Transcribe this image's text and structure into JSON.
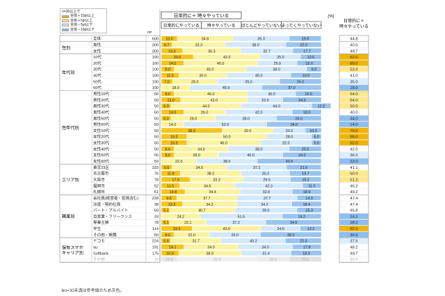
{
  "chart_data": {
    "type": "bar",
    "legend": {
      "title": "n=30以上で",
      "items": [
        {
          "label": "全体＋10pt以上",
          "color": "#f0b400"
        },
        {
          "label": "全体＋5pt以上",
          "color": "#ffe98a"
        },
        {
          "label": "全体－5pt以下",
          "color": "#dceeff"
        },
        {
          "label": "全体－10pt以下",
          "color": "#8cbef0"
        }
      ]
    },
    "group_header": "日常的に＋ 時々やっている",
    "series": [
      {
        "name": "日常的にやっている",
        "color": "#f5c518"
      },
      {
        "name": "時々やっている",
        "color": "#fcf3a0"
      },
      {
        "name": "ほとんどやっていない",
        "color": "#d4e9fb"
      },
      {
        "name": "まったくやっていない",
        "color": "#9ac4ee"
      }
    ],
    "percent_unit": "(%)",
    "right_header": "日常的に＋\n時々やっている",
    "n_header": "n=",
    "groups": [
      {
        "label": "",
        "rows": [
          {
            "label": "全体",
            "n": "600",
            "values": [
              10.0,
              34.8,
              35.3,
              19.8
            ],
            "total": "44.8"
          }
        ]
      },
      {
        "label": "性別",
        "rows": [
          {
            "label": "男性",
            "n": "300",
            "values": [
              6.7,
              33.3,
              38.0,
              22.0
            ],
            "total": "40.0"
          },
          {
            "label": "女性",
            "n": "300",
            "values": [
              13.3,
              36.3,
              32.7,
              17.7
            ],
            "total": "49.7"
          }
        ]
      },
      {
        "label": "年代別",
        "rows": [
          {
            "label": "10代",
            "n": "100",
            "values": [
              20.0,
              42.0,
              25.0,
              13.0
            ],
            "total": "62.0"
          },
          {
            "label": "20代",
            "n": "100",
            "values": [
              14.0,
              46.0,
              25.0,
              15.0
            ],
            "total": "60.0"
          },
          {
            "label": "30代",
            "n": "100",
            "values": [
              8.0,
              45.0,
              38.0,
              9.0
            ],
            "total": "53.0"
          },
          {
            "label": "40代",
            "n": "100",
            "values": [
              11.0,
              30.0,
              40.0,
              19.0
            ],
            "total": "41.0"
          },
          {
            "label": "50代",
            "n": "100",
            "values": [
              7.0,
              28.0,
              39.0,
              26.0
            ],
            "total": "35.0"
          },
          {
            "label": "60代",
            "n": "100",
            "values": [
              0.0,
              18.0,
              45.0,
              37.0
            ],
            "total": "18.0"
          }
        ]
      },
      {
        "label": "性年代別",
        "rows": [
          {
            "label": "男性10代",
            "n": "50",
            "values": [
              8.0,
              46.0,
              30.0,
              16.0
            ],
            "total": "54.0"
          },
          {
            "label": "男性20代",
            "n": "50",
            "values": [
              12.0,
              42.0,
              22.0,
              24.0
            ],
            "total": "54.0"
          },
          {
            "label": "男性30代",
            "n": "50",
            "values": [
              6.0,
              44.0,
              44.0,
              12.0
            ],
            "total": "50.0"
          },
          {
            "label": "男性40代",
            "n": "50",
            "values": [
              14.0,
              26.0,
              42.0,
              18.0
            ],
            "total": "40.0"
          },
          {
            "label": "男性50代",
            "n": "50",
            "values": [
              6.0,
              28.0,
              38.0,
              28.0
            ],
            "total": "34.0"
          },
          {
            "label": "男性60代",
            "n": "50",
            "values": [
              0.0,
              14.0,
              52.0,
              34.0
            ],
            "total": "14.0"
          },
          {
            "label": "女性10代",
            "n": "50",
            "values": [
              38.0,
              32.0,
              20.0,
              10.0
            ],
            "total": "70.0"
          },
          {
            "label": "女性20代",
            "n": "50",
            "values": [
              16.0,
              50.0,
              28.0,
              6.0
            ],
            "total": "66.0"
          },
          {
            "label": "女性30代",
            "n": "50",
            "values": [
              16.0,
              46.0,
              32.0,
              6.0
            ],
            "total": "62.0"
          },
          {
            "label": "女性40代",
            "n": "50",
            "values": [
              8.0,
              34.0,
              38.0,
              20.0
            ],
            "total": "42.0"
          },
          {
            "label": "女性50代",
            "n": "50",
            "values": [
              8.0,
              28.0,
              40.0,
              24.0
            ],
            "total": "36.0"
          },
          {
            "label": "女性60代",
            "n": "50",
            "values": [
              0.0,
              22.0,
              38.0,
              40.0
            ],
            "total": "22.0"
          }
        ]
      },
      {
        "label": "エリア別",
        "rows": [
          {
            "label": "東京23区",
            "n": "333",
            "values": [
              6.6,
              34.5,
              37.2,
              21.6
            ],
            "total": "41.1"
          },
          {
            "label": "名古屋市",
            "n": "76",
            "values": [
              11.8,
              38.2,
              30.3,
              19.7
            ],
            "total": "50.0"
          },
          {
            "label": "大阪市",
            "n": "78",
            "values": [
              17.9,
              33.3,
              29.5,
              19.2
            ],
            "total": "51.3"
          },
          {
            "label": "福岡市",
            "n": "52",
            "values": [
              11.5,
              34.6,
              42.3,
              11.5
            ],
            "total": "46.2"
          },
          {
            "label": "札幌市",
            "n": "61",
            "values": [
              14.8,
              34.4,
              32.8,
              18.0
            ],
            "total": "49.2"
          }
        ]
      },
      {
        "label": "職業別",
        "rows": [
          {
            "label": "会社員(経営者・役員含む)",
            "n": "228",
            "values": [
              9.6,
              37.7,
              37.7,
              14.9
            ],
            "total": "47.4"
          },
          {
            "label": "派遣・契約社員",
            "n": "38",
            "values": [
              13.2,
              34.2,
              34.2,
              18.4
            ],
            "total": "47.4"
          },
          {
            "label": "パート・アルバイト",
            "n": "59",
            "values": [
              5.1,
              40.7,
              39.0,
              15.3
            ],
            "total": "45.8"
          },
          {
            "label": "自営業・フリーランス",
            "n": "33",
            "values": [
              0.0,
              24.2,
              51.5,
              24.2
            ],
            "total": "24.2"
          },
          {
            "label": "専業主婦",
            "n": "78",
            "values": [
              5.1,
              23.1,
              37.2,
              34.6
            ],
            "total": "28.2"
          },
          {
            "label": "学生",
            "n": "114",
            "values": [
              19.3,
              43.0,
              24.6,
              13.2
            ],
            "total": "62.3"
          },
          {
            "label": "その他・無職",
            "n": "50",
            "values": [
              8.0,
              22.0,
              32.0,
              38.0
            ],
            "total": "30.0"
          }
        ]
      },
      {
        "label": "保有スマホ\nキャリア別",
        "rows": [
          {
            "label": "ドコモ",
            "n": "224",
            "values": [
              5.8,
              31.7,
              40.2,
              22.3
            ],
            "total": "37.5"
          },
          {
            "label": "au",
            "n": "191",
            "values": [
              14.1,
              34.0,
              34.0,
              17.8
            ],
            "total": "48.2"
          },
          {
            "label": "Softbank",
            "n": "175",
            "values": [
              10.9,
              38.9,
              31.4,
              18.9
            ],
            "total": "49.7"
          },
          {
            "label": "その他",
            "n": "10",
            "values": [
              10.0,
              50.0,
              20.0,
              20.0
            ],
            "total": "60.0"
          }
        ]
      }
    ],
    "footnote": "※n=30未満は参考値のため灰色。"
  }
}
